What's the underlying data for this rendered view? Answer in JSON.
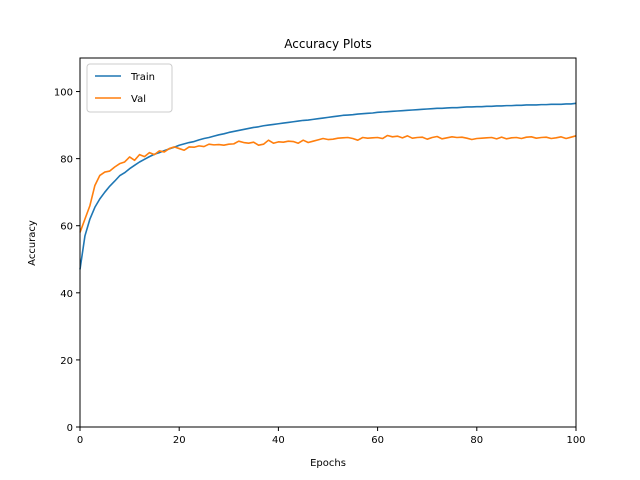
{
  "chart_data": {
    "type": "line",
    "title": "Accuracy Plots",
    "xlabel": "Epochs",
    "ylabel": "Accuracy",
    "xlim": [
      0,
      100
    ],
    "ylim": [
      0,
      110
    ],
    "xticks": [
      0,
      20,
      40,
      60,
      80,
      100
    ],
    "yticks": [
      0,
      20,
      40,
      60,
      80,
      100
    ],
    "grid": false,
    "legend_position": "top-left",
    "series": [
      {
        "name": "Train",
        "color": "#1f77b4",
        "x": [
          0,
          1,
          2,
          3,
          4,
          5,
          6,
          7,
          8,
          9,
          10,
          11,
          12,
          13,
          14,
          15,
          16,
          17,
          18,
          19,
          20,
          21,
          22,
          23,
          24,
          25,
          26,
          27,
          28,
          29,
          30,
          31,
          32,
          33,
          34,
          35,
          36,
          37,
          38,
          39,
          40,
          41,
          42,
          43,
          44,
          45,
          46,
          47,
          48,
          49,
          50,
          51,
          52,
          53,
          54,
          55,
          56,
          57,
          58,
          59,
          60,
          61,
          62,
          63,
          64,
          65,
          66,
          67,
          68,
          69,
          70,
          71,
          72,
          73,
          74,
          75,
          76,
          77,
          78,
          79,
          80,
          81,
          82,
          83,
          84,
          85,
          86,
          87,
          88,
          89,
          90,
          91,
          92,
          93,
          94,
          95,
          96,
          97,
          98,
          99,
          100
        ],
        "y": [
          47,
          57,
          62,
          65.5,
          68,
          70,
          71.8,
          73.3,
          74.9,
          75.8,
          77,
          78,
          79,
          79.8,
          80.6,
          81.3,
          81.8,
          82.4,
          82.9,
          83.4,
          84,
          84.4,
          84.8,
          85.1,
          85.6,
          86,
          86.3,
          86.7,
          87.1,
          87.4,
          87.8,
          88.1,
          88.4,
          88.7,
          89,
          89.3,
          89.5,
          89.8,
          90,
          90.2,
          90.4,
          90.6,
          90.8,
          91,
          91.2,
          91.4,
          91.5,
          91.7,
          91.9,
          92.1,
          92.3,
          92.5,
          92.7,
          92.9,
          93,
          93.1,
          93.3,
          93.4,
          93.5,
          93.6,
          93.8,
          93.9,
          94,
          94.1,
          94.2,
          94.3,
          94.4,
          94.5,
          94.6,
          94.7,
          94.8,
          94.9,
          95,
          95,
          95.1,
          95.2,
          95.2,
          95.3,
          95.4,
          95.4,
          95.5,
          95.5,
          95.6,
          95.6,
          95.7,
          95.7,
          95.8,
          95.8,
          95.9,
          95.9,
          96,
          96,
          96,
          96.1,
          96.1,
          96.2,
          96.2,
          96.2,
          96.3,
          96.3,
          96.5
        ]
      },
      {
        "name": "Val",
        "color": "#ff7f0e",
        "x": [
          0,
          1,
          2,
          3,
          4,
          5,
          6,
          7,
          8,
          9,
          10,
          11,
          12,
          13,
          14,
          15,
          16,
          17,
          18,
          19,
          20,
          21,
          22,
          23,
          24,
          25,
          26,
          27,
          28,
          29,
          30,
          31,
          32,
          33,
          34,
          35,
          36,
          37,
          38,
          39,
          40,
          41,
          42,
          43,
          44,
          45,
          46,
          47,
          48,
          49,
          50,
          51,
          52,
          53,
          54,
          55,
          56,
          57,
          58,
          59,
          60,
          61,
          62,
          63,
          64,
          65,
          66,
          67,
          68,
          69,
          70,
          71,
          72,
          73,
          74,
          75,
          76,
          77,
          78,
          79,
          80,
          81,
          82,
          83,
          84,
          85,
          86,
          87,
          88,
          89,
          90,
          91,
          92,
          93,
          94,
          95,
          96,
          97,
          98,
          99,
          100
        ],
        "y": [
          58,
          62,
          66,
          72,
          75,
          76,
          76.3,
          77.5,
          78.5,
          79,
          80.5,
          79.5,
          81.2,
          80.6,
          81.8,
          81.2,
          82.3,
          82,
          83,
          83.5,
          83,
          82.5,
          83.5,
          83.4,
          83.8,
          83.6,
          84.3,
          84.1,
          84.2,
          84,
          84.3,
          84.4,
          85.2,
          84.8,
          84.6,
          84.9,
          84,
          84.3,
          85.5,
          84.6,
          85,
          84.9,
          85.2,
          85.1,
          84.6,
          85.5,
          84.8,
          85.2,
          85.6,
          86,
          85.7,
          85.8,
          86.1,
          86.2,
          86.3,
          86,
          85.5,
          86.3,
          86.1,
          86.2,
          86.3,
          86,
          86.9,
          86.5,
          86.7,
          86.2,
          86.8,
          86.1,
          86.3,
          86.4,
          85.8,
          86.3,
          86.6,
          85.9,
          86.2,
          86.5,
          86.3,
          86.4,
          86.1,
          85.7,
          86,
          86.1,
          86.2,
          86.3,
          85.9,
          86.4,
          85.9,
          86.2,
          86.3,
          86,
          86.4,
          86.5,
          86.1,
          86.3,
          86.4,
          86,
          86.2,
          86.5,
          86,
          86.4,
          86.8
        ]
      }
    ]
  }
}
